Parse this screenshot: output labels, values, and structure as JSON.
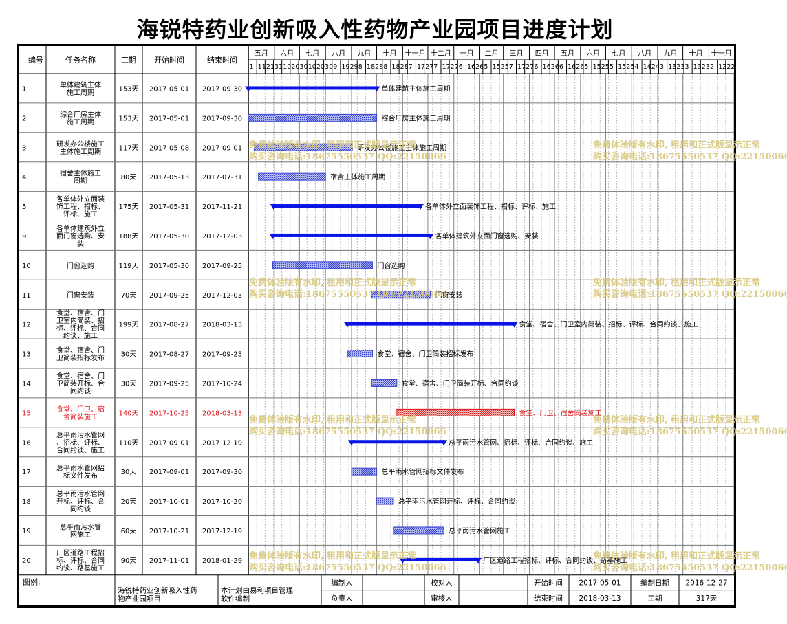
{
  "title": "海锐特药业创新吸入性药物产业园项目进度计划",
  "headers": {
    "id": "编号",
    "name": "任务名称",
    "duration": "工期",
    "start": "开始时间",
    "end": "结束时间"
  },
  "chart_data": {
    "type": "gantt",
    "timeline_start": "2017-05-01",
    "timeline_end": "2018-12-01",
    "months": [
      "五月",
      "六月",
      "七月",
      "八月",
      "九月",
      "十月",
      "十一月",
      "十二月",
      "一月",
      "二月",
      "三月",
      "四月",
      "五月",
      "六月",
      "七月",
      "八月",
      "九月",
      "十月",
      "十一月"
    ],
    "month_days": [
      [
        "1",
        "11",
        "21"
      ],
      [
        "31",
        "10",
        "20"
      ],
      [
        "30",
        "10",
        "20"
      ],
      [
        "30",
        "9",
        "19"
      ],
      [
        "29",
        "8",
        "18"
      ],
      [
        "28",
        "8",
        "18"
      ],
      [
        "28",
        "7",
        "17"
      ],
      [
        "27",
        "7",
        "17"
      ],
      [
        "27",
        "6",
        "16"
      ],
      [
        "26",
        "5",
        "15"
      ],
      [
        "25",
        "7",
        "17"
      ],
      [
        "27",
        "6",
        "16"
      ],
      [
        "26",
        "6",
        "16"
      ],
      [
        "26",
        "5",
        "15"
      ],
      [
        "25",
        "5",
        "15"
      ],
      [
        "25",
        "4",
        "14"
      ],
      [
        "24",
        "3",
        "13"
      ],
      [
        "23",
        "3",
        "13"
      ],
      [
        "23",
        "2",
        "12"
      ],
      [
        "22"
      ]
    ],
    "tasks": [
      {
        "id": "1",
        "name": "单体建筑主体施工周期",
        "duration": "153天",
        "start": "2017-05-01",
        "end": "2017-09-30",
        "label": "单体建筑主体施工周期",
        "summary": true,
        "critical": false
      },
      {
        "id": "2",
        "name": "综合厂房主体施工周期",
        "duration": "153天",
        "start": "2017-05-01",
        "end": "2017-09-30",
        "label": "综合厂房主体施工周期",
        "summary": false,
        "critical": false
      },
      {
        "id": "3",
        "name": "研发办公楼施工主体施工周期",
        "duration": "117天",
        "start": "2017-05-08",
        "end": "2017-09-01",
        "label": "研发办公楼施工主体施工周期",
        "summary": false,
        "critical": false
      },
      {
        "id": "4",
        "name": "宿舍主体施工周期",
        "duration": "80天",
        "start": "2017-05-13",
        "end": "2017-07-31",
        "label": "宿舍主体施工周期",
        "summary": false,
        "critical": false
      },
      {
        "id": "5",
        "name": "各单体外立面装饰工程、招标、评标、施工",
        "duration": "175天",
        "start": "2017-05-31",
        "end": "2017-11-21",
        "label": "各单体外立面装饰工程、招标、评标、施工",
        "summary": true,
        "critical": false
      },
      {
        "id": "9",
        "name": "各单体建筑外立面门窗选购、安装",
        "duration": "188天",
        "start": "2017-05-30",
        "end": "2017-12-03",
        "label": "各单体建筑外立面门窗选购、安装",
        "summary": true,
        "critical": false
      },
      {
        "id": "10",
        "name": "门窗选购",
        "duration": "119天",
        "start": "2017-05-30",
        "end": "2017-09-25",
        "label": "门窗选购",
        "summary": false,
        "critical": false
      },
      {
        "id": "11",
        "name": "门窗安装",
        "duration": "70天",
        "start": "2017-09-25",
        "end": "2017-12-03",
        "label": "门窗安装",
        "summary": false,
        "critical": false
      },
      {
        "id": "12",
        "name": "食堂、宿舍、门卫室内简装、招标、评标、合同约谈、施工",
        "duration": "199天",
        "start": "2017-08-27",
        "end": "2018-03-13",
        "label": "食堂、宿舍、门卫室内简装、招标、评标、合同约谈、施工",
        "summary": true,
        "critical": false
      },
      {
        "id": "13",
        "name": "食堂、宿舍、门卫简装招标发布",
        "duration": "30天",
        "start": "2017-08-27",
        "end": "2017-09-25",
        "label": "食堂、宿舍、门卫简装招标发布",
        "summary": false,
        "critical": false
      },
      {
        "id": "14",
        "name": "食堂、宿舍、门卫简装开标、合同约谈",
        "duration": "30天",
        "start": "2017-09-25",
        "end": "2017-10-24",
        "label": "食堂、宿舍、门卫简装开标、合同约谈",
        "summary": false,
        "critical": false
      },
      {
        "id": "15",
        "name": "食堂、门卫、宿舍简装施工",
        "duration": "140天",
        "start": "2017-10-25",
        "end": "2018-03-13",
        "label": "食堂、门卫、宿舍简装施工",
        "summary": false,
        "critical": true
      },
      {
        "id": "16",
        "name": "总平雨污水管网、招标、评标、合同约谈、施工",
        "duration": "110天",
        "start": "2017-09-01",
        "end": "2017-12-19",
        "label": "总平雨污水管网、招标、评标、合同约谈、施工",
        "summary": true,
        "critical": false
      },
      {
        "id": "17",
        "name": "总平雨水管网招标文件发布",
        "duration": "30天",
        "start": "2017-09-01",
        "end": "2017-09-30",
        "label": "总平雨水管网招标文件发布",
        "summary": false,
        "critical": false
      },
      {
        "id": "18",
        "name": "总平雨污水管网开标、评标、合同约谈",
        "duration": "20天",
        "start": "2017-10-01",
        "end": "2017-10-20",
        "label": "总平雨污水管网开标、评标、合同约谈",
        "summary": false,
        "critical": false
      },
      {
        "id": "19",
        "name": "总平雨污水管网施工",
        "duration": "60天",
        "start": "2017-10-21",
        "end": "2017-12-19",
        "label": "总平雨污水管网施工",
        "summary": false,
        "critical": false
      },
      {
        "id": "20",
        "name": "厂区道路工程招标、评标、合同约谈、路基施工",
        "duration": "90天",
        "start": "2017-11-01",
        "end": "2018-01-29",
        "label": "厂区道路工程招标、评标、合同约谈、路基施工",
        "summary": true,
        "critical": false
      }
    ]
  },
  "footer": {
    "legend_label": "图例:",
    "project_name": "海锐特药业创新吸入性药物产业园项目",
    "software_note": "本计划由易利项目管理软件编制",
    "compiler_label": "编制人",
    "checker_label": "校对人",
    "owner_label": "负责人",
    "reviewer_label": "审核人",
    "start_label": "开始时间",
    "start_value": "2017-05-01",
    "end_label": "结束时间",
    "end_value": "2018-03-13",
    "date_label": "编制日期",
    "date_value": "2016-12-27",
    "duration_label": "工期",
    "duration_value": "317天"
  },
  "watermark": {
    "line1": "免费体验版有水印, 租用和正式版显示正常",
    "line2": "购买咨询电话:18675550537 QQ:22150066"
  },
  "colors": {
    "summary": "#0a14e6",
    "task": "#3c46d2",
    "critical": "#e0141e",
    "watermark": "#d8c77a"
  }
}
